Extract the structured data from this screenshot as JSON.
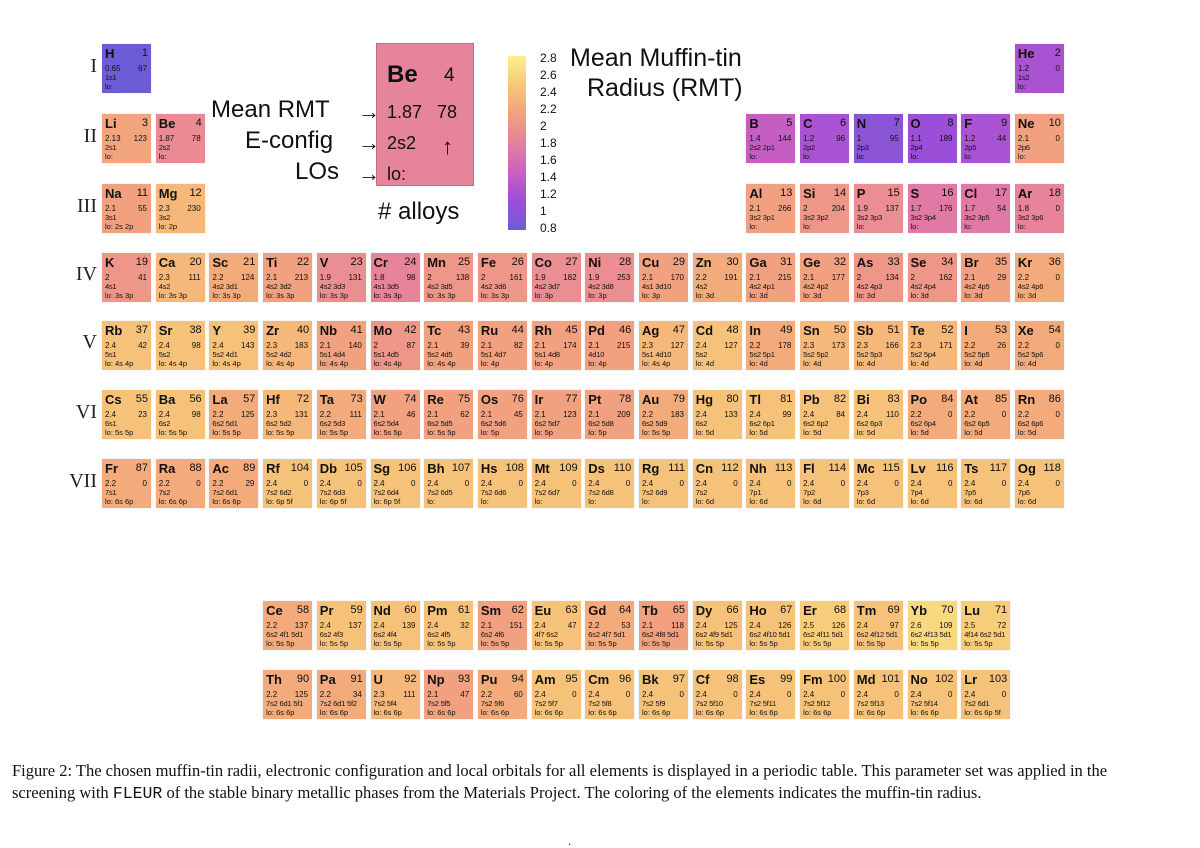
{
  "periods": [
    "I",
    "II",
    "III",
    "IV",
    "V",
    "VI",
    "VII"
  ],
  "legend": {
    "symbol": "Be",
    "z": "4",
    "rmt": "1.87",
    "alloys": "78",
    "econf": "2s2",
    "los": "lo:",
    "label_rmt": "Mean RMT",
    "label_econf": "E-config",
    "label_los": "LOs",
    "label_alloys": "# alloys"
  },
  "colorbar": {
    "title_line1": "Mean Muffin-tin",
    "title_line2": "Radius (RMT)",
    "ticks": [
      "2.8",
      "2.6",
      "2.4",
      "2.2",
      "2",
      "1.8",
      "1.6",
      "1.4",
      "1.2",
      "1",
      "0.8"
    ],
    "colors": [
      "#6c5cd6",
      "#a04ed8",
      "#cd62bc",
      "#e8849a",
      "#f2a47c",
      "#f7c978",
      "#fdf08a"
    ]
  },
  "elements": [
    [
      "H",
      "1",
      "0.65",
      "67",
      "1s1",
      "lo:",
      1,
      1
    ],
    [
      "He",
      "2",
      "1.2",
      "0",
      "1s2",
      "lo:",
      1,
      18
    ],
    [
      "Li",
      "3",
      "2.13",
      "123",
      "2s1",
      "lo:",
      2,
      1
    ],
    [
      "Be",
      "4",
      "1.87",
      "78",
      "2s2",
      "lo:",
      2,
      2
    ],
    [
      "B",
      "5",
      "1.4",
      "144",
      "2s2 2p1",
      "lo:",
      2,
      13
    ],
    [
      "C",
      "6",
      "1.2",
      "96",
      "2p2",
      "lo:",
      2,
      14
    ],
    [
      "N",
      "7",
      "1",
      "95",
      "2p3",
      "lo:",
      2,
      15
    ],
    [
      "O",
      "8",
      "1.1",
      "189",
      "2p4",
      "lo:",
      2,
      16
    ],
    [
      "F",
      "9",
      "1.2",
      "44",
      "2p5",
      "lo:",
      2,
      17
    ],
    [
      "Ne",
      "10",
      "2.1",
      "0",
      "2p6",
      "lo:",
      2,
      18
    ],
    [
      "Na",
      "11",
      "2.1",
      "55",
      "3s1",
      "lo: 2s 2p",
      3,
      1
    ],
    [
      "Mg",
      "12",
      "2.3",
      "230",
      "3s2",
      "lo: 2p",
      3,
      2
    ],
    [
      "Al",
      "13",
      "2.1",
      "266",
      "3s2 3p1",
      "lo:",
      3,
      13
    ],
    [
      "Si",
      "14",
      "2",
      "204",
      "3s2 3p2",
      "lo:",
      3,
      14
    ],
    [
      "P",
      "15",
      "1.9",
      "137",
      "3s2 3p3",
      "lo:",
      3,
      15
    ],
    [
      "S",
      "16",
      "1.7",
      "176",
      "3s2 3p4",
      "lo:",
      3,
      16
    ],
    [
      "Cl",
      "17",
      "1.7",
      "54",
      "3s2 3p5",
      "lo:",
      3,
      17
    ],
    [
      "Ar",
      "18",
      "1.8",
      "0",
      "3s2 3p6",
      "lo:",
      3,
      18
    ],
    [
      "K",
      "19",
      "2",
      "41",
      "4s1",
      "lo: 3s 3p",
      4,
      1
    ],
    [
      "Ca",
      "20",
      "2.3",
      "111",
      "4s2",
      "lo: 3s 3p",
      4,
      2
    ],
    [
      "Sc",
      "21",
      "2.2",
      "124",
      "4s2 3d1",
      "lo: 3s 3p",
      4,
      3
    ],
    [
      "Ti",
      "22",
      "2.1",
      "213",
      "4s2 3d2",
      "lo: 3s 3p",
      4,
      4
    ],
    [
      "V",
      "23",
      "1.9",
      "131",
      "4s2 3d3",
      "lo: 3s 3p",
      4,
      5
    ],
    [
      "Cr",
      "24",
      "1.8",
      "98",
      "4s1 3d5",
      "lo: 3s 3p",
      4,
      6
    ],
    [
      "Mn",
      "25",
      "2",
      "138",
      "4s2 3d5",
      "lo: 3s 3p",
      4,
      7
    ],
    [
      "Fe",
      "26",
      "2",
      "161",
      "4s2 3d6",
      "lo: 3s 3p",
      4,
      8
    ],
    [
      "Co",
      "27",
      "1.9",
      "182",
      "4s2 3d7",
      "lo: 3p",
      4,
      9
    ],
    [
      "Ni",
      "28",
      "1.9",
      "253",
      "4s2 3d8",
      "lo: 3p",
      4,
      10
    ],
    [
      "Cu",
      "29",
      "2.1",
      "170",
      "4s1 3d10",
      "lo: 3p",
      4,
      11
    ],
    [
      "Zn",
      "30",
      "2.2",
      "191",
      "4s2",
      "lo: 3d",
      4,
      12
    ],
    [
      "Ga",
      "31",
      "2.1",
      "215",
      "4s2 4p1",
      "lo: 3d",
      4,
      13
    ],
    [
      "Ge",
      "32",
      "2.1",
      "177",
      "4s2 4p2",
      "lo: 3d",
      4,
      14
    ],
    [
      "As",
      "33",
      "2",
      "134",
      "4s2 4p3",
      "lo: 3d",
      4,
      15
    ],
    [
      "Se",
      "34",
      "2",
      "162",
      "4s2 4p4",
      "lo: 3d",
      4,
      16
    ],
    [
      "Br",
      "35",
      "2.1",
      "29",
      "4s2 4p5",
      "lo: 3d",
      4,
      17
    ],
    [
      "Kr",
      "36",
      "2.2",
      "0",
      "4s2 4p6",
      "lo: 3d",
      4,
      18
    ],
    [
      "Rb",
      "37",
      "2.4",
      "42",
      "5s1",
      "lo: 4s 4p",
      5,
      1
    ],
    [
      "Sr",
      "38",
      "2.4",
      "98",
      "5s2",
      "lo: 4s 4p",
      5,
      2
    ],
    [
      "Y",
      "39",
      "2.4",
      "143",
      "5s2 4d1",
      "lo: 4s 4p",
      5,
      3
    ],
    [
      "Zr",
      "40",
      "2.3",
      "183",
      "5s2 4d2",
      "lo: 4s 4p",
      5,
      4
    ],
    [
      "Nb",
      "41",
      "2.1",
      "140",
      "5s1 4d4",
      "lo: 4s 4p",
      5,
      5
    ],
    [
      "Mo",
      "42",
      "2",
      "87",
      "5s1 4d5",
      "lo: 4s 4p",
      5,
      6
    ],
    [
      "Tc",
      "43",
      "2.1",
      "39",
      "5s2 4d5",
      "lo: 4s 4p",
      5,
      7
    ],
    [
      "Ru",
      "44",
      "2.1",
      "82",
      "5s1 4d7",
      "lo: 4p",
      5,
      8
    ],
    [
      "Rh",
      "45",
      "2.1",
      "174",
      "5s1 4d8",
      "lo: 4p",
      5,
      9
    ],
    [
      "Pd",
      "46",
      "2.1",
      "215",
      "4d10",
      "lo: 4p",
      5,
      10
    ],
    [
      "Ag",
      "47",
      "2.3",
      "127",
      "5s1 4d10",
      "lo: 4s 4p",
      5,
      11
    ],
    [
      "Cd",
      "48",
      "2.4",
      "127",
      "5s2",
      "lo: 4d",
      5,
      12
    ],
    [
      "In",
      "49",
      "2.2",
      "178",
      "5s2 5p1",
      "lo: 4d",
      5,
      13
    ],
    [
      "Sn",
      "50",
      "2.3",
      "173",
      "5s2 5p2",
      "lo: 4d",
      5,
      14
    ],
    [
      "Sb",
      "51",
      "2.3",
      "166",
      "5s2 5p3",
      "lo: 4d",
      5,
      15
    ],
    [
      "Te",
      "52",
      "2.3",
      "171",
      "5s2 5p4",
      "lo: 4d",
      5,
      16
    ],
    [
      "I",
      "53",
      "2.2",
      "26",
      "5s2 5p5",
      "lo: 4d",
      5,
      17
    ],
    [
      "Xe",
      "54",
      "2.2",
      "0",
      "5s2 5p6",
      "lo: 4d",
      5,
      18
    ],
    [
      "Cs",
      "55",
      "2.4",
      "23",
      "6s1",
      "lo: 5s 5p",
      6,
      1
    ],
    [
      "Ba",
      "56",
      "2.4",
      "98",
      "6s2",
      "lo: 5s 5p",
      6,
      2
    ],
    [
      "La",
      "57",
      "2.2",
      "125",
      "6s2 5d1",
      "lo: 5s 5p",
      6,
      3
    ],
    [
      "Hf",
      "72",
      "2.3",
      "131",
      "6s2 5d2",
      "lo: 5s 5p",
      6,
      4
    ],
    [
      "Ta",
      "73",
      "2.2",
      "111",
      "6s2 5d3",
      "lo: 5s 5p",
      6,
      5
    ],
    [
      "W",
      "74",
      "2.1",
      "46",
      "6s2 5d4",
      "lo: 5s 5p",
      6,
      6
    ],
    [
      "Re",
      "75",
      "2.1",
      "62",
      "6s2 5d5",
      "lo: 5s 5p",
      6,
      7
    ],
    [
      "Os",
      "76",
      "2.1",
      "45",
      "6s2 5d6",
      "lo: 5p",
      6,
      8
    ],
    [
      "Ir",
      "77",
      "2.1",
      "123",
      "6s2 5d7",
      "lo: 5p",
      6,
      9
    ],
    [
      "Pt",
      "78",
      "2.1",
      "209",
      "6s2 5d8",
      "lo: 5p",
      6,
      10
    ],
    [
      "Au",
      "79",
      "2.2",
      "183",
      "6s2 5d9",
      "lo: 5s 5p",
      6,
      11
    ],
    [
      "Hg",
      "80",
      "2.4",
      "133",
      "6s2",
      "lo: 5d",
      6,
      12
    ],
    [
      "Tl",
      "81",
      "2.4",
      "99",
      "6s2 6p1",
      "lo: 5d",
      6,
      13
    ],
    [
      "Pb",
      "82",
      "2.4",
      "84",
      "6s2 6p2",
      "lo: 5d",
      6,
      14
    ],
    [
      "Bi",
      "83",
      "2.4",
      "110",
      "6s2 6p3",
      "lo: 5d",
      6,
      15
    ],
    [
      "Po",
      "84",
      "2.2",
      "0",
      "6s2 6p4",
      "lo: 5d",
      6,
      16
    ],
    [
      "At",
      "85",
      "2.2",
      "0",
      "6s2 6p5",
      "lo: 5d",
      6,
      17
    ],
    [
      "Rn",
      "86",
      "2.2",
      "0",
      "6s2 6p6",
      "lo: 5d",
      6,
      18
    ],
    [
      "Fr",
      "87",
      "2.2",
      "0",
      "7s1",
      "lo: 6s 6p",
      7,
      1
    ],
    [
      "Ra",
      "88",
      "2.2",
      "0",
      "7s2",
      "lo: 6s 6p",
      7,
      2
    ],
    [
      "Ac",
      "89",
      "2.2",
      "29",
      "7s2 6d1",
      "lo: 6s 6p",
      7,
      3
    ],
    [
      "Rf",
      "104",
      "2.4",
      "0",
      "7s2 6d2",
      "lo: 6p 5f",
      7,
      4
    ],
    [
      "Db",
      "105",
      "2.4",
      "0",
      "7s2 6d3",
      "lo: 6p 5f",
      7,
      5
    ],
    [
      "Sg",
      "106",
      "2.4",
      "0",
      "7s2 6d4",
      "lo: 6p 5f",
      7,
      6
    ],
    [
      "Bh",
      "107",
      "2.4",
      "0",
      "7s2 6d5",
      "lo:",
      7,
      7
    ],
    [
      "Hs",
      "108",
      "2.4",
      "0",
      "7s2 6d6",
      "lo:",
      7,
      8
    ],
    [
      "Mt",
      "109",
      "2.4",
      "0",
      "7s2 6d7",
      "lo:",
      7,
      9
    ],
    [
      "Ds",
      "110",
      "2.4",
      "0",
      "7s2 6d8",
      "lo:",
      7,
      10
    ],
    [
      "Rg",
      "111",
      "2.4",
      "0",
      "7s2 6d9",
      "lo:",
      7,
      11
    ],
    [
      "Cn",
      "112",
      "2.4",
      "0",
      "7s2",
      "lo: 6d",
      7,
      12
    ],
    [
      "Nh",
      "113",
      "2.4",
      "0",
      "7p1",
      "lo: 6d",
      7,
      13
    ],
    [
      "Fl",
      "114",
      "2.4",
      "0",
      "7p2",
      "lo: 6d",
      7,
      14
    ],
    [
      "Mc",
      "115",
      "2.4",
      "0",
      "7p3",
      "lo: 6d",
      7,
      15
    ],
    [
      "Lv",
      "116",
      "2.4",
      "0",
      "7p4",
      "lo: 6d",
      7,
      16
    ],
    [
      "Ts",
      "117",
      "2.4",
      "0",
      "7p5",
      "lo: 6d",
      7,
      17
    ],
    [
      "Og",
      "118",
      "2.4",
      "0",
      "7p6",
      "lo: 6d",
      7,
      18
    ],
    [
      "Ce",
      "58",
      "2.2",
      "137",
      "6s2 4f1 5d1",
      "lo: 5s 5p",
      9,
      4
    ],
    [
      "Pr",
      "59",
      "2.4",
      "137",
      "6s2 4f3",
      "lo: 5s 5p",
      9,
      5
    ],
    [
      "Nd",
      "60",
      "2.4",
      "139",
      "6s2 4f4",
      "lo: 5s 5p",
      9,
      6
    ],
    [
      "Pm",
      "61",
      "2.4",
      "32",
      "6s2 4f5",
      "lo: 5s 5p",
      9,
      7
    ],
    [
      "Sm",
      "62",
      "2.1",
      "151",
      "6s2 4f6",
      "lo: 5s 5p",
      9,
      8
    ],
    [
      "Eu",
      "63",
      "2.4",
      "47",
      "4f7 6s2",
      "lo: 5s 5p",
      9,
      9
    ],
    [
      "Gd",
      "64",
      "2.2",
      "53",
      "6s2 4f7 5d1",
      "lo: 5s 5p",
      9,
      10
    ],
    [
      "Tb",
      "65",
      "2.1",
      "118",
      "6s2 4f8 5d1",
      "lo: 5s 5p",
      9,
      11
    ],
    [
      "Dy",
      "66",
      "2.4",
      "125",
      "6s2 4f9 5d1",
      "lo: 5s 5p",
      9,
      12
    ],
    [
      "Ho",
      "67",
      "2.4",
      "126",
      "6s2 4f10 5d1",
      "lo: 5s 5p",
      9,
      13
    ],
    [
      "Er",
      "68",
      "2.5",
      "126",
      "6s2 4f11 5d1",
      "lo: 5s 5p",
      9,
      14
    ],
    [
      "Tm",
      "69",
      "2.4",
      "97",
      "6s2 4f12 5d1",
      "lo: 5s 5p",
      9,
      15
    ],
    [
      "Yb",
      "70",
      "2.6",
      "109",
      "6s2 4f13 5d1",
      "lo: 5s 5p",
      9,
      16
    ],
    [
      "Lu",
      "71",
      "2.5",
      "72",
      "4f14 6s2 5d1",
      "lo: 5s 5p",
      9,
      17
    ],
    [
      "Th",
      "90",
      "2.2",
      "125",
      "7s2 6d1 5f1",
      "lo: 6s 6p",
      10,
      4
    ],
    [
      "Pa",
      "91",
      "2.2",
      "34",
      "7s2 6d1 5f2",
      "lo: 6s 6p",
      10,
      5
    ],
    [
      "U",
      "92",
      "2.3",
      "111",
      "7s2 5f4",
      "lo: 6s 6p",
      10,
      6
    ],
    [
      "Np",
      "93",
      "2.1",
      "47",
      "7s2 5f5",
      "lo: 6s 6p",
      10,
      7
    ],
    [
      "Pu",
      "94",
      "2.2",
      "60",
      "7s2 5f6",
      "lo: 6s 6p",
      10,
      8
    ],
    [
      "Am",
      "95",
      "2.4",
      "0",
      "7s2 5f7",
      "lo: 6s 6p",
      10,
      9
    ],
    [
      "Cm",
      "96",
      "2.4",
      "0",
      "7s2 5f8",
      "lo: 6s 6p",
      10,
      10
    ],
    [
      "Bk",
      "97",
      "2.4",
      "0",
      "7s2 5f9",
      "lo: 6s 6p",
      10,
      11
    ],
    [
      "Cf",
      "98",
      "2.4",
      "0",
      "7s2 5f10",
      "lo: 6s 6p",
      10,
      12
    ],
    [
      "Es",
      "99",
      "2.4",
      "0",
      "7s2 5f11",
      "lo: 6s 6p",
      10,
      13
    ],
    [
      "Fm",
      "100",
      "2.4",
      "0",
      "7s2 5f12",
      "lo: 6s 6p",
      10,
      14
    ],
    [
      "Md",
      "101",
      "2.4",
      "0",
      "7s2 5f13",
      "lo: 6s 6p",
      10,
      15
    ],
    [
      "No",
      "102",
      "2.4",
      "0",
      "7s2 5f14",
      "lo: 6s 6p",
      10,
      16
    ],
    [
      "Lr",
      "103",
      "2.4",
      "0",
      "7s2 6d1",
      "lo: 6s 6p 5f",
      10,
      17
    ]
  ],
  "caption": {
    "part1": "Figure 2: The chosen muffin-tin radii, electronic configuration and local orbitals for all elements is displayed in a periodic table. This parameter set was applied in the screening with ",
    "code": "FLEUR",
    "part2": " of the stable binary metallic phases from the Materials Project. The coloring of the elements indicates the muffin-tin radius."
  },
  "page_mark": "."
}
